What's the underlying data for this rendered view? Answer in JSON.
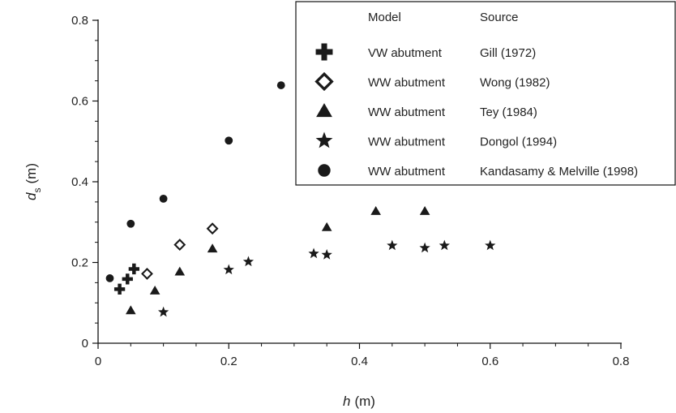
{
  "chart_data": {
    "type": "scatter",
    "xlabel": {
      "var": "h",
      "unit": "(m)"
    },
    "ylabel": {
      "var": "d",
      "sub": "s",
      "unit": "(m)"
    },
    "xlim": [
      0,
      0.8
    ],
    "ylim": [
      0,
      0.8
    ],
    "x_ticks": [
      "0",
      "0.2",
      "0.4",
      "0.6",
      "0.8"
    ],
    "y_ticks": [
      "0",
      "0.2",
      "0.4",
      "0.6",
      "0.8"
    ],
    "grid": false,
    "legend": {
      "placement": "top-right",
      "header_model": "Model",
      "header_source": "Source"
    },
    "series": [
      {
        "marker": "cross",
        "model": "VW abutment",
        "source": "Gill (1972)",
        "points": [
          [
            0.033,
            0.134
          ],
          [
            0.045,
            0.159
          ],
          [
            0.055,
            0.184
          ]
        ]
      },
      {
        "marker": "diamond",
        "model": "WW abutment",
        "source": "Wong (1982)",
        "points": [
          [
            0.075,
            0.172
          ],
          [
            0.125,
            0.244
          ],
          [
            0.175,
            0.284
          ]
        ]
      },
      {
        "marker": "triangle",
        "model": "WW abutment",
        "source": "Tey (1984)",
        "points": [
          [
            0.05,
            0.081
          ],
          [
            0.087,
            0.13
          ],
          [
            0.125,
            0.177
          ],
          [
            0.175,
            0.234
          ],
          [
            0.35,
            0.287
          ],
          [
            0.425,
            0.327
          ],
          [
            0.5,
            0.327
          ]
        ]
      },
      {
        "marker": "star",
        "model": "WW abutment",
        "source": "Dongol (1994)",
        "points": [
          [
            0.1,
            0.077
          ],
          [
            0.2,
            0.182
          ],
          [
            0.23,
            0.202
          ],
          [
            0.33,
            0.222
          ],
          [
            0.35,
            0.219
          ],
          [
            0.45,
            0.242
          ],
          [
            0.5,
            0.236
          ],
          [
            0.53,
            0.242
          ],
          [
            0.6,
            0.242
          ]
        ]
      },
      {
        "marker": "circle",
        "model": "WW abutment",
        "source": "Kandasamy & Melville (1998)",
        "points": [
          [
            0.018,
            0.161
          ],
          [
            0.05,
            0.296
          ],
          [
            0.1,
            0.358
          ],
          [
            0.2,
            0.502
          ],
          [
            0.28,
            0.639
          ]
        ]
      }
    ]
  }
}
